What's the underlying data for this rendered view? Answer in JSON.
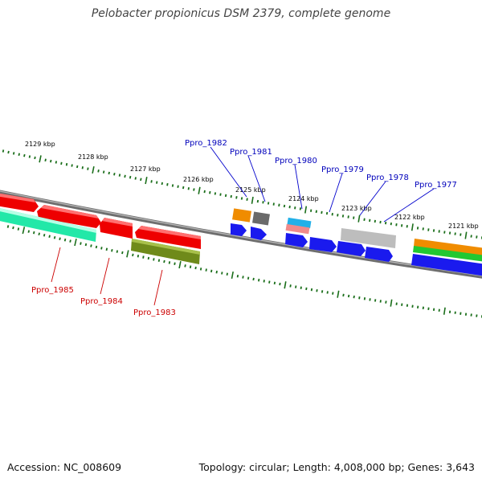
{
  "title": "Pelobacter propionicus DSM 2379, complete genome",
  "footer": {
    "accession": "Accession: NC_008609",
    "summary": "Topology: circular; Length: 4,008,000 bp; Genes: 3,643"
  },
  "colors": {
    "plus_label": "#0000bb",
    "minus_label": "#cc0000",
    "ticks": "#1a6e1a",
    "backbone": "#808080"
  },
  "scale_labels": [
    "2129 kbp",
    "2128 kbp",
    "2127 kbp",
    "2126 kbp",
    "2125 kbp",
    "2124 kbp",
    "2123 kbp",
    "2122 kbp",
    "2121 kbp"
  ],
  "gene_labels_plus": [
    "Ppro_1982",
    "Ppro_1981",
    "Ppro_1980",
    "Ppro_1979",
    "Ppro_1978",
    "Ppro_1977"
  ],
  "gene_labels_minus": [
    "Ppro_1985",
    "Ppro_1984",
    "Ppro_1983"
  ],
  "feature_colors": {
    "cds_red": "#ee0000",
    "cds_blue": "#1a1aee",
    "teal": "#22e8a8",
    "olive": "#6f8a1a",
    "orange": "#f08c00",
    "dark_gray": "#6a6a6a",
    "cyan": "#22b0e8",
    "pink": "#f08a8a",
    "light_gray": "#bdbdbd",
    "green": "#22c832"
  }
}
